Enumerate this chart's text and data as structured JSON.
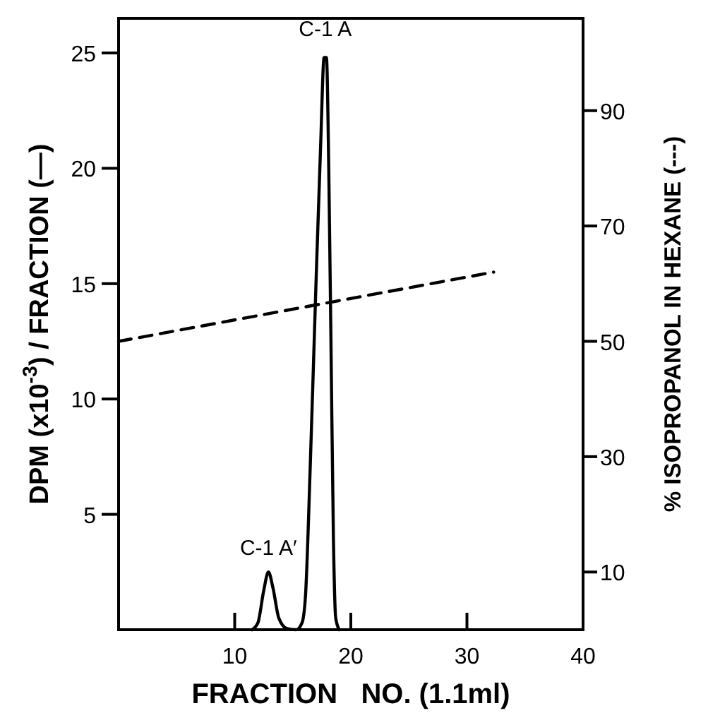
{
  "chart_data": {
    "type": "line",
    "xlabel": "FRACTION   NO. (1.1ml)",
    "ylabel": "DPM (x10$^{-3}$) / FRACTION (—)",
    "y2label": "% ISOPROPANOL IN HEXANE (---)",
    "xlim": [
      0,
      40
    ],
    "xticks": [
      10,
      20,
      30,
      40
    ],
    "ylim": [
      0,
      26.5
    ],
    "yticks": [
      5,
      10,
      15,
      20,
      25
    ],
    "y2lim": [
      0,
      106
    ],
    "y2ticks": [
      10,
      30,
      50,
      70,
      90
    ],
    "grid": false,
    "series": [
      {
        "color": "#000000",
        "line_style": "solid",
        "x": [
          11.5,
          12,
          12.5,
          12.9,
          13.3,
          13.8,
          14.5,
          15.3,
          15.8,
          16.1,
          16.5,
          17,
          17.4,
          17.7,
          17.9,
          18.1,
          18.3,
          18.5,
          18.7,
          19
        ],
        "values": [
          0,
          0.3,
          1.7,
          2.5,
          1.8,
          0.5,
          0.05,
          0,
          0.3,
          1.5,
          7,
          15,
          21,
          24.8,
          24.8,
          20,
          12,
          4,
          0.5,
          0
        ]
      },
      {
        "color": "#000000",
        "line_style": "dashed",
        "axis": "y2",
        "x": [
          0,
          32.3
        ],
        "values": [
          50,
          62
        ]
      }
    ],
    "annotations": [
      {
        "text": "C-1 A",
        "x": 17.8,
        "y": 25
      },
      {
        "text": "C-1 A′",
        "x": 12.9,
        "y": 2.5
      }
    ]
  }
}
